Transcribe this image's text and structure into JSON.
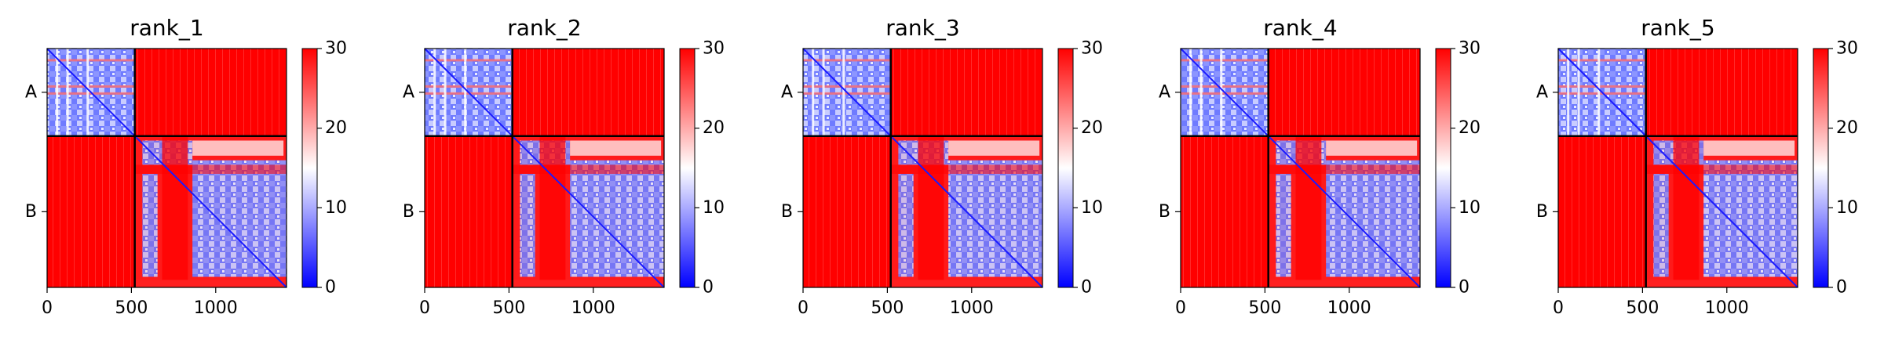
{
  "figure": {
    "panel_titles": [
      "rank_1",
      "rank_2",
      "rank_3",
      "rank_4",
      "rank_5"
    ]
  },
  "colors": {
    "low": "#0000ff",
    "mid": "#ffffff",
    "high": "#ff0000",
    "divider": "#000000"
  },
  "chart_data": [
    {
      "type": "heatmap",
      "title": "rank_1",
      "chains": [
        {
          "name": "A",
          "start": 0,
          "end": 520
        },
        {
          "name": "B",
          "start": 520,
          "end": 1420
        }
      ],
      "x_ticks": [
        0,
        500,
        1000
      ],
      "xlim": [
        0,
        1420
      ],
      "colorbar": {
        "min": 0,
        "max": 30,
        "ticks": [
          0,
          10,
          20,
          30
        ],
        "colormap": "bwr"
      },
      "grid": false
    },
    {
      "type": "heatmap",
      "title": "rank_2",
      "chains": [
        {
          "name": "A",
          "start": 0,
          "end": 520
        },
        {
          "name": "B",
          "start": 520,
          "end": 1420
        }
      ],
      "x_ticks": [
        0,
        500,
        1000
      ],
      "xlim": [
        0,
        1420
      ],
      "colorbar": {
        "min": 0,
        "max": 30,
        "ticks": [
          0,
          10,
          20,
          30
        ],
        "colormap": "bwr"
      },
      "grid": false
    },
    {
      "type": "heatmap",
      "title": "rank_3",
      "chains": [
        {
          "name": "A",
          "start": 0,
          "end": 520
        },
        {
          "name": "B",
          "start": 520,
          "end": 1420
        }
      ],
      "x_ticks": [
        0,
        500,
        1000
      ],
      "xlim": [
        0,
        1420
      ],
      "colorbar": {
        "min": 0,
        "max": 30,
        "ticks": [
          0,
          10,
          20,
          30
        ],
        "colormap": "bwr"
      },
      "grid": false
    },
    {
      "type": "heatmap",
      "title": "rank_4",
      "chains": [
        {
          "name": "A",
          "start": 0,
          "end": 520
        },
        {
          "name": "B",
          "start": 520,
          "end": 1420
        }
      ],
      "x_ticks": [
        0,
        500,
        1000
      ],
      "xlim": [
        0,
        1420
      ],
      "colorbar": {
        "min": 0,
        "max": 30,
        "ticks": [
          0,
          10,
          20,
          30
        ],
        "colormap": "bwr"
      },
      "grid": false
    },
    {
      "type": "heatmap",
      "title": "rank_5",
      "chains": [
        {
          "name": "A",
          "start": 0,
          "end": 520
        },
        {
          "name": "B",
          "start": 520,
          "end": 1420
        }
      ],
      "x_ticks": [
        0,
        500,
        1000
      ],
      "xlim": [
        0,
        1420
      ],
      "colorbar": {
        "min": 0,
        "max": 30,
        "ticks": [
          0,
          10,
          20,
          30
        ],
        "colormap": "bwr"
      },
      "grid": false
    }
  ]
}
